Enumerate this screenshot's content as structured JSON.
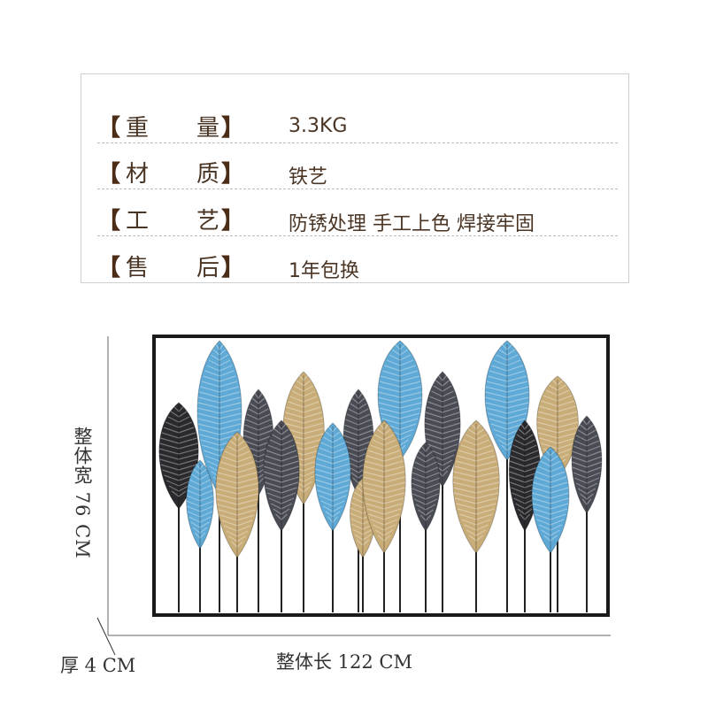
{
  "specs": [
    {
      "label_char1": "重",
      "label_char2": "量",
      "value": "3.3KG"
    },
    {
      "label_char1": "材",
      "label_char2": "质",
      "value": "铁艺"
    },
    {
      "label_char1": "工",
      "label_char2": "艺",
      "value": "防锈处理 手工上色 焊接牢固"
    },
    {
      "label_char1": "售",
      "label_char2": "后",
      "value": "1年包换"
    }
  ],
  "brackets": {
    "open": "【",
    "close": "】"
  },
  "dimensions": {
    "width_label": "整体宽 76 CM",
    "length_label": "整体长 122 CM",
    "thickness_label": "厚 4 CM"
  },
  "colors": {
    "text": "#4a3525",
    "leaf_blue": "#5fa9d6",
    "leaf_gold": "#c9ad78",
    "leaf_dark": "#4a4c55",
    "leaf_black": "#2a2a2e",
    "frame": "#1a1a1a"
  }
}
